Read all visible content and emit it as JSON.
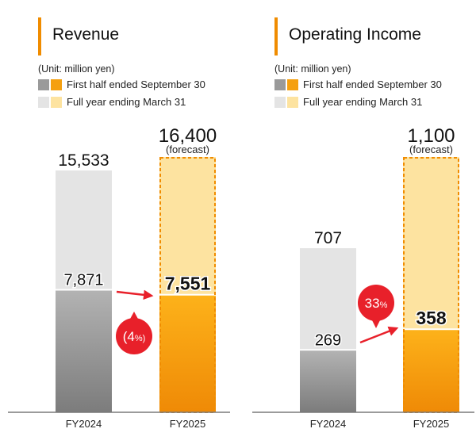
{
  "colors": {
    "accent": "#f08c00",
    "fy2024_half": "#9a9a9a",
    "fy2025_half": "#f5a010",
    "fy2024_full": "#e4e4e4",
    "fy2025_full": "#fde3a0",
    "forecast_border": "#f08c00",
    "change_badge": "#e8202a",
    "axis": "#7a7a7a"
  },
  "legend": {
    "unit": "(Unit: million yen)",
    "first_half": "First half ended September 30",
    "full_year": "Full year ending March 31"
  },
  "chart_data": [
    {
      "type": "bar",
      "title": "Revenue",
      "unit": "million yen",
      "categories": [
        "FY2024",
        "FY2025"
      ],
      "series": [
        {
          "name": "First half ended September 30",
          "values": [
            7871,
            7551
          ]
        },
        {
          "name": "Full year ending March 31",
          "values": [
            15533,
            16400
          ]
        }
      ],
      "value_labels": {
        "first_half": [
          "7,871",
          "7,551"
        ],
        "full_year": [
          "15,533",
          "16,400"
        ]
      },
      "forecast": [
        false,
        true
      ],
      "forecast_label": "(forecast)",
      "change_badge": {
        "value": "(4",
        "suffix": "%)",
        "text": "(4%)"
      },
      "ylim": [
        0,
        16400
      ],
      "grid": false
    },
    {
      "type": "bar",
      "title": "Operating Income",
      "unit": "million yen",
      "categories": [
        "FY2024",
        "FY2025"
      ],
      "series": [
        {
          "name": "First half ended September 30",
          "values": [
            269,
            358
          ]
        },
        {
          "name": "Full year ending March 31",
          "values": [
            707,
            1100
          ]
        }
      ],
      "value_labels": {
        "first_half": [
          "269",
          "358"
        ],
        "full_year": [
          "707",
          "1,100"
        ]
      },
      "forecast": [
        false,
        true
      ],
      "forecast_label": "(forecast)",
      "change_badge": {
        "value": "33",
        "suffix": "%",
        "text": "33%"
      },
      "ylim": [
        0,
        1100
      ],
      "grid": false
    }
  ]
}
